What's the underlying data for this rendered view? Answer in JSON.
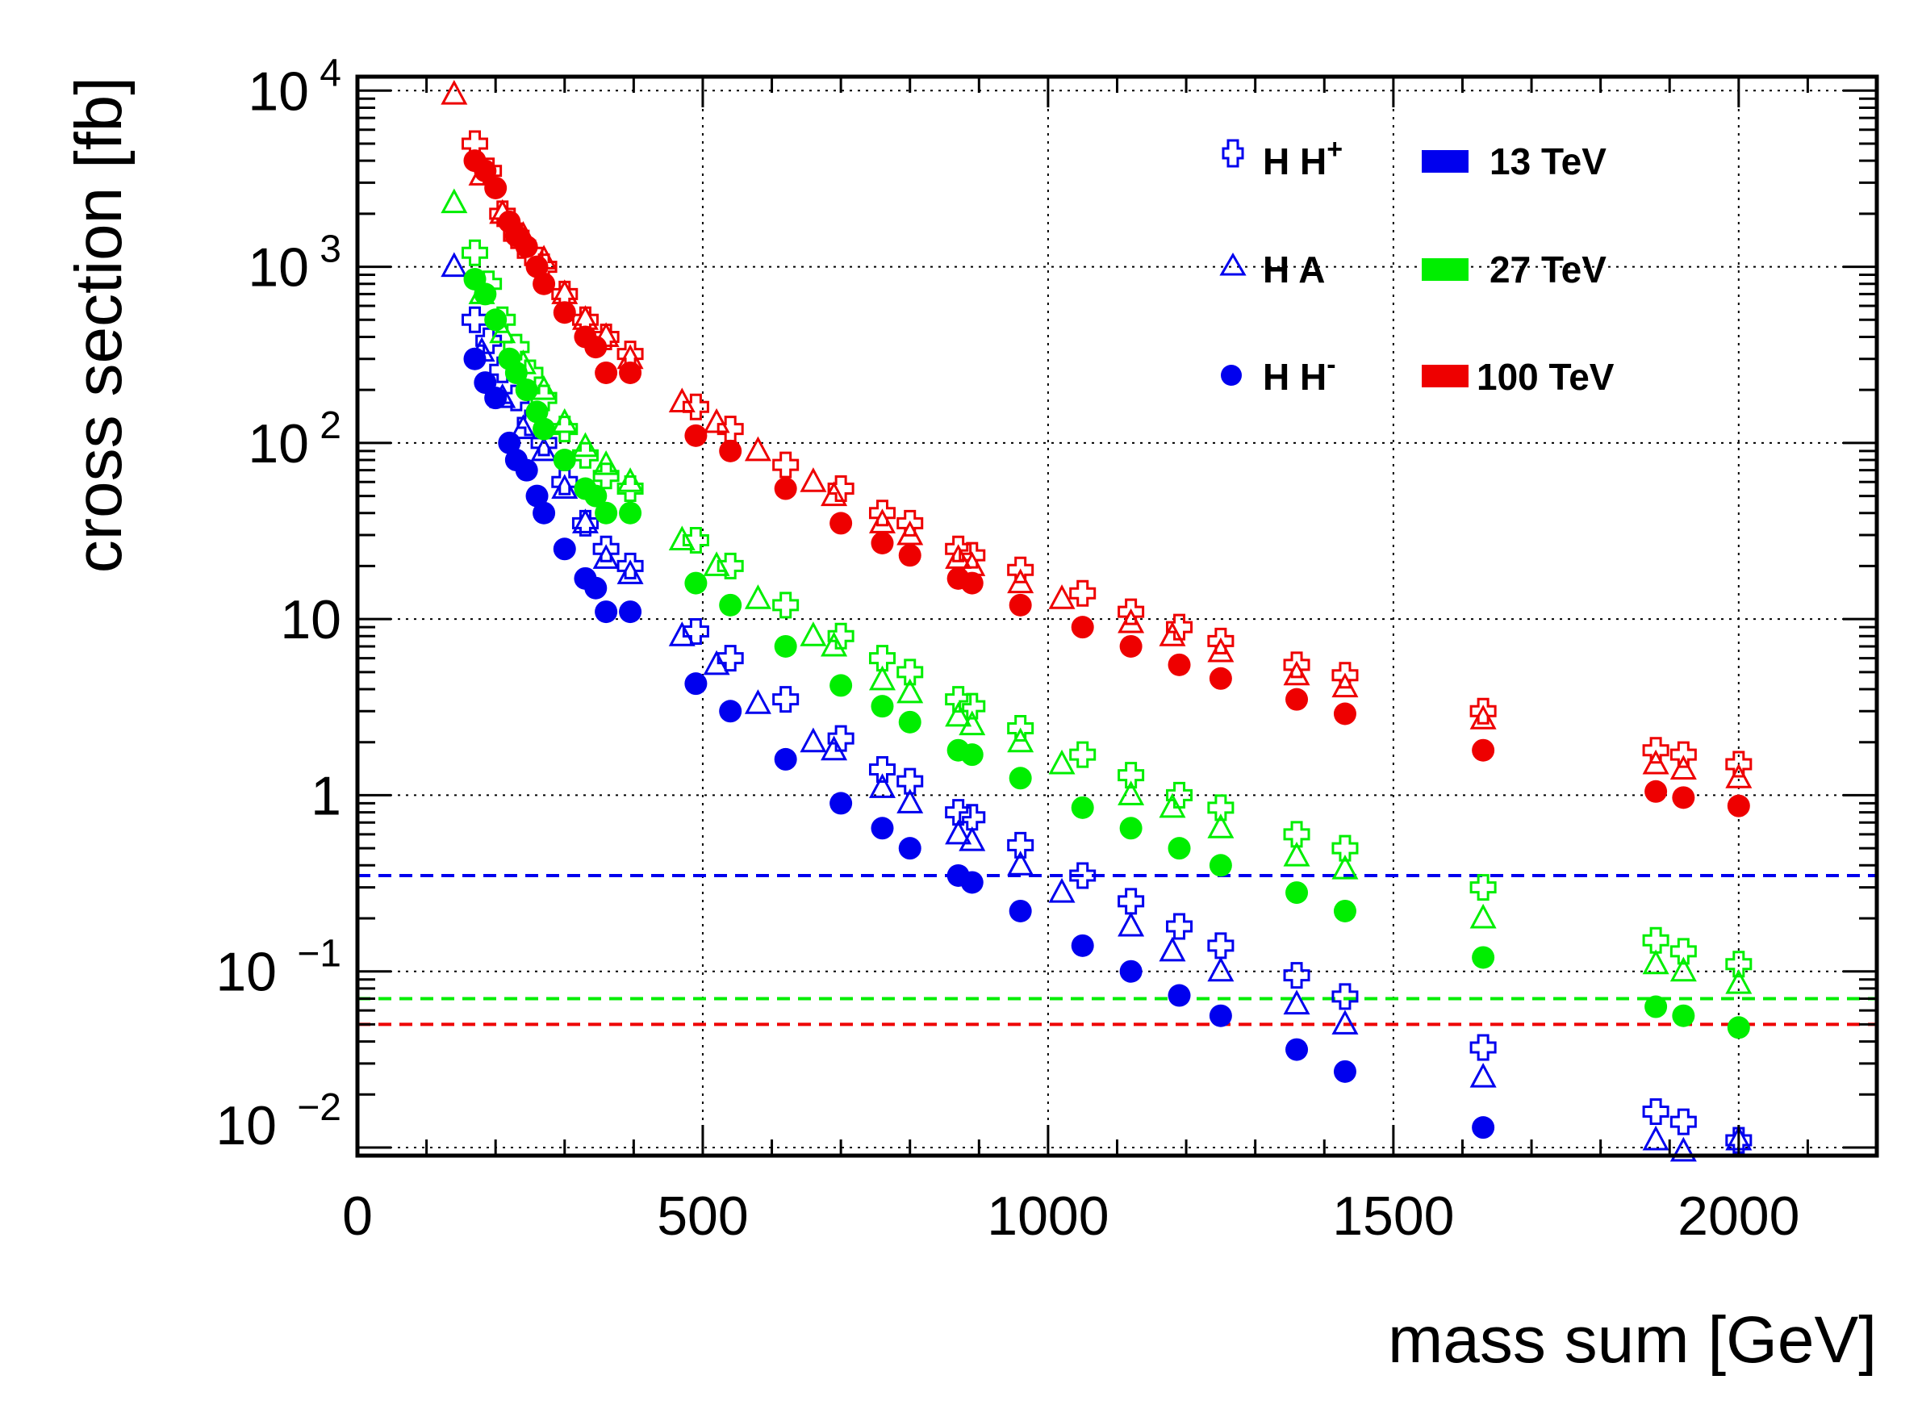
{
  "chart_data": {
    "type": "scatter",
    "title": "",
    "xlabel": "mass sum [GeV]",
    "ylabel": "cross section [fb]",
    "xlim": [
      0,
      2200
    ],
    "ylim": [
      0.009,
      12000
    ],
    "yscale": "log",
    "grid": true,
    "x_ticks": [
      {
        "value": 0,
        "label": "0"
      },
      {
        "value": 500,
        "label": "500"
      },
      {
        "value": 1000,
        "label": "1000"
      },
      {
        "value": 1500,
        "label": "1500"
      },
      {
        "value": 2000,
        "label": "2000"
      }
    ],
    "y_ticks": [
      {
        "value": 10000,
        "base": "10",
        "exp": "4"
      },
      {
        "value": 1000,
        "base": "10",
        "exp": "3"
      },
      {
        "value": 100,
        "base": "10",
        "exp": "2"
      },
      {
        "value": 10,
        "base": "10",
        "exp": ""
      },
      {
        "value": 1,
        "base": "1",
        "exp": ""
      },
      {
        "value": 0.1,
        "base": "10",
        "exp": "−1"
      },
      {
        "value": 0.01,
        "base": "10",
        "exp": "−2"
      }
    ],
    "legend": {
      "placement": "top-right",
      "processes": [
        {
          "id": "hhp",
          "label": "H H",
          "sup": "+",
          "marker": "cross-open"
        },
        {
          "id": "ha",
          "label": "H A",
          "sup": "",
          "marker": "triangle-open"
        },
        {
          "id": "hhm",
          "label": "H H",
          "sup": "-",
          "marker": "circle-filled"
        }
      ],
      "energies": [
        {
          "id": "e13",
          "label": "13 TeV",
          "color": "#0000ee"
        },
        {
          "id": "e27",
          "label": "27 TeV",
          "color": "#00ee00"
        },
        {
          "id": "e100",
          "label": "100 TeV",
          "color": "#ee0000"
        }
      ]
    },
    "reference_lines": [
      {
        "energy": "e13",
        "y": 0.35,
        "color": "#0000ee"
      },
      {
        "energy": "e27",
        "y": 0.07,
        "color": "#00ee00"
      },
      {
        "energy": "e100",
        "y": 0.05,
        "color": "#ee0000"
      }
    ],
    "series": [
      {
        "name": "H H+ 13 TeV",
        "process": "hhp",
        "energy": "e13",
        "color": "#0000ee",
        "x": [
          170,
          190,
          210,
          230,
          250,
          270,
          300,
          330,
          360,
          395,
          490,
          540,
          620,
          700,
          760,
          800,
          870,
          890,
          960,
          1050,
          1120,
          1190,
          1250,
          1360,
          1430,
          1630,
          1880,
          1920,
          2000
        ],
        "y": [
          500,
          380,
          260,
          180,
          130,
          100,
          60,
          35,
          25,
          20,
          8.5,
          6,
          3.5,
          2.1,
          1.4,
          1.2,
          0.8,
          0.75,
          0.52,
          0.35,
          0.25,
          0.18,
          0.14,
          0.095,
          0.072,
          0.037,
          0.016,
          0.014,
          0.011
        ]
      },
      {
        "name": "H A 13 TeV",
        "process": "ha",
        "energy": "e13",
        "color": "#0000ee",
        "x": [
          140,
          180,
          210,
          240,
          270,
          300,
          330,
          360,
          395,
          470,
          520,
          580,
          660,
          690,
          760,
          800,
          870,
          890,
          960,
          1020,
          1120,
          1180,
          1250,
          1360,
          1430,
          1630,
          1880,
          1920,
          2000
        ],
        "y": [
          1000,
          330,
          180,
          120,
          90,
          55,
          35,
          22,
          18,
          8,
          5.5,
          3.3,
          2.0,
          1.8,
          1.1,
          0.9,
          0.6,
          0.55,
          0.4,
          0.28,
          0.18,
          0.13,
          0.1,
          0.065,
          0.05,
          0.025,
          0.011,
          0.0095,
          0.011
        ]
      },
      {
        "name": "H H- 13 TeV",
        "process": "hhm",
        "energy": "e13",
        "color": "#0000ee",
        "x": [
          170,
          185,
          200,
          220,
          230,
          245,
          260,
          270,
          300,
          330,
          345,
          360,
          395,
          490,
          540,
          620,
          700,
          760,
          800,
          870,
          890,
          960,
          1050,
          1120,
          1190,
          1250,
          1360,
          1430,
          1630
        ],
        "y": [
          300,
          220,
          180,
          100,
          80,
          70,
          50,
          40,
          25,
          17,
          15,
          11,
          11,
          4.3,
          3,
          1.6,
          0.9,
          0.65,
          0.5,
          0.35,
          0.32,
          0.22,
          0.14,
          0.1,
          0.073,
          0.056,
          0.036,
          0.027,
          0.013
        ]
      },
      {
        "name": "H H+ 27 TeV",
        "process": "hhp",
        "energy": "e27",
        "color": "#00ee00",
        "x": [
          170,
          190,
          210,
          230,
          250,
          270,
          300,
          330,
          360,
          395,
          490,
          540,
          620,
          700,
          760,
          800,
          870,
          890,
          960,
          1050,
          1120,
          1190,
          1250,
          1360,
          1430,
          1630,
          1880,
          1920,
          2000
        ],
        "y": [
          1200,
          800,
          500,
          350,
          250,
          180,
          120,
          85,
          65,
          55,
          28,
          20,
          12,
          8,
          6,
          5,
          3.5,
          3.2,
          2.4,
          1.7,
          1.3,
          1.0,
          0.85,
          0.6,
          0.5,
          0.3,
          0.15,
          0.13,
          0.11
        ]
      },
      {
        "name": "H A 27 TeV",
        "process": "ha",
        "energy": "e27",
        "color": "#00ee00",
        "x": [
          140,
          180,
          210,
          240,
          270,
          300,
          330,
          360,
          395,
          470,
          520,
          580,
          660,
          690,
          760,
          800,
          870,
          890,
          960,
          1020,
          1120,
          1180,
          1250,
          1360,
          1430,
          1630,
          1880,
          1920,
          2000
        ],
        "y": [
          2300,
          700,
          420,
          280,
          200,
          130,
          95,
          75,
          60,
          28,
          20,
          13,
          8,
          7,
          4.5,
          3.8,
          2.8,
          2.5,
          2.0,
          1.5,
          1.0,
          0.85,
          0.65,
          0.45,
          0.38,
          0.2,
          0.11,
          0.1,
          0.085
        ]
      },
      {
        "name": "H H- 27 TeV",
        "process": "hhm",
        "energy": "e27",
        "color": "#00ee00",
        "x": [
          170,
          185,
          200,
          220,
          230,
          245,
          260,
          270,
          300,
          330,
          345,
          360,
          395,
          490,
          540,
          620,
          700,
          760,
          800,
          870,
          890,
          960,
          1050,
          1120,
          1190,
          1250,
          1360,
          1430,
          1630,
          1880,
          1920,
          2000
        ],
        "y": [
          850,
          700,
          500,
          300,
          250,
          200,
          150,
          120,
          80,
          55,
          50,
          40,
          40,
          16,
          12,
          7,
          4.2,
          3.2,
          2.6,
          1.8,
          1.7,
          1.25,
          0.85,
          0.65,
          0.5,
          0.4,
          0.28,
          0.22,
          0.12,
          0.063,
          0.056,
          0.048
        ]
      },
      {
        "name": "H H+ 100 TeV",
        "process": "hhp",
        "energy": "e100",
        "color": "#ee0000",
        "x": [
          170,
          190,
          210,
          230,
          250,
          270,
          300,
          330,
          360,
          395,
          490,
          540,
          620,
          700,
          760,
          800,
          870,
          890,
          960,
          1050,
          1120,
          1190,
          1250,
          1360,
          1430,
          1630,
          1880,
          1920,
          2000
        ],
        "y": [
          5000,
          3500,
          2000,
          1500,
          1200,
          1000,
          700,
          500,
          400,
          320,
          160,
          120,
          75,
          55,
          40,
          35,
          25,
          23,
          19,
          14,
          11,
          9,
          7.5,
          5.5,
          4.8,
          3.0,
          1.8,
          1.7,
          1.5
        ]
      },
      {
        "name": "H A 100 TeV",
        "process": "ha",
        "energy": "e100",
        "color": "#ee0000",
        "x": [
          140,
          180,
          210,
          240,
          270,
          300,
          330,
          360,
          395,
          470,
          520,
          580,
          660,
          690,
          760,
          800,
          870,
          890,
          960,
          1020,
          1120,
          1180,
          1250,
          1360,
          1430,
          1630,
          1880,
          1920,
          2000
        ],
        "y": [
          9500,
          3300,
          2000,
          1500,
          1100,
          700,
          500,
          400,
          300,
          170,
          130,
          90,
          60,
          50,
          35,
          30,
          22,
          20,
          16,
          13,
          9.5,
          8,
          6.5,
          4.8,
          4.1,
          2.7,
          1.5,
          1.4,
          1.25
        ]
      },
      {
        "name": "H H- 100 TeV",
        "process": "hhm",
        "energy": "e100",
        "color": "#ee0000",
        "x": [
          170,
          185,
          200,
          220,
          230,
          245,
          260,
          270,
          300,
          330,
          345,
          360,
          395,
          490,
          540,
          620,
          700,
          760,
          800,
          870,
          890,
          960,
          1050,
          1120,
          1190,
          1250,
          1360,
          1430,
          1630,
          1880,
          1920,
          2000
        ],
        "y": [
          4000,
          3500,
          2800,
          1800,
          1500,
          1300,
          1000,
          800,
          550,
          400,
          350,
          250,
          250,
          110,
          90,
          55,
          35,
          27,
          23,
          17,
          16,
          12,
          9,
          7,
          5.5,
          4.6,
          3.5,
          2.9,
          1.8,
          1.05,
          0.97,
          0.87
        ]
      }
    ]
  }
}
